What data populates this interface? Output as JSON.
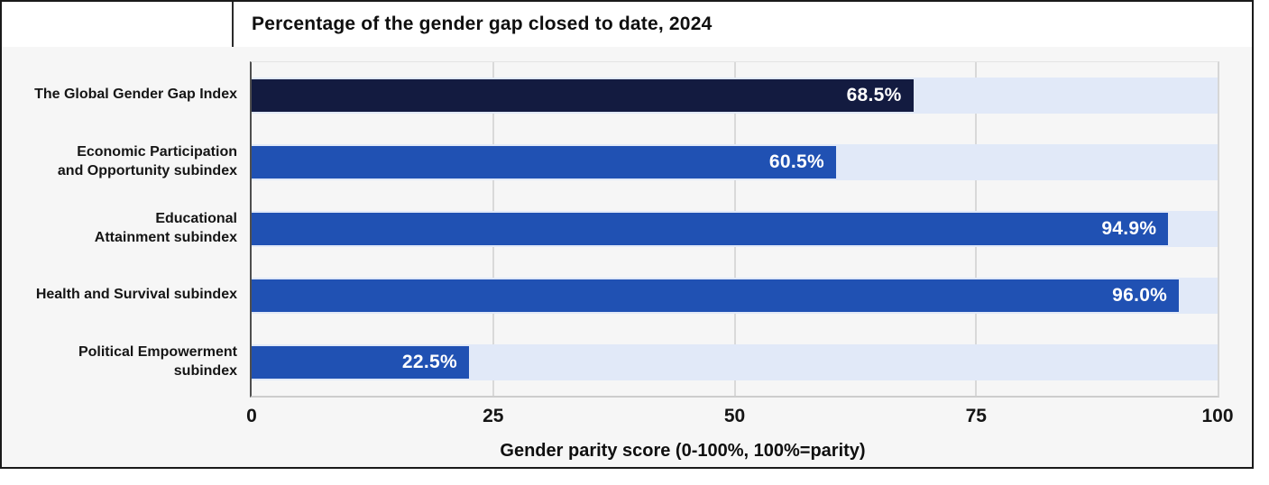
{
  "chart_data": {
    "type": "bar",
    "orientation": "horizontal",
    "title": "Percentage of the gender gap closed to date, 2024",
    "xlabel": "Gender parity score (0-100%, 100%=parity)",
    "xlim": [
      0,
      100
    ],
    "xticks": [
      0,
      25,
      50,
      75,
      100
    ],
    "grid": true,
    "legend": false,
    "categories": [
      "The Global Gender Gap Index",
      "Economic Participation and Opportunity subindex",
      "Educational Attainment subindex",
      "Health and Survival subindex",
      "Political Empowerment subindex"
    ],
    "category_lines": [
      [
        "The Global Gender Gap Index"
      ],
      [
        "Economic Participation",
        "and Opportunity subindex"
      ],
      [
        "Educational",
        "Attainment subindex"
      ],
      [
        "Health and Survival subindex"
      ],
      [
        "Political Empowerment",
        "subindex"
      ]
    ],
    "values": [
      68.5,
      60.5,
      94.9,
      96.0,
      22.5
    ],
    "value_labels": [
      "68.5%",
      "60.5%",
      "94.9%",
      "96.0%",
      "22.5%"
    ],
    "bar_colors": [
      "#131b40",
      "#2051b3",
      "#2051b3",
      "#2051b3",
      "#2051b3"
    ],
    "track_color": "#e1e9f8"
  },
  "colors": {
    "navy_bar": "#131b40",
    "blue_bar": "#2051b3",
    "bar_track": "#e1e9f8",
    "chart_background": "#f6f6f6",
    "title_band_background": "#ffffff",
    "frame_border": "#1a1a1a",
    "grid_line": "#d9d9d9",
    "axis_line": "#4f4f4f",
    "text": "#151515",
    "value_text": "#ffffff"
  }
}
